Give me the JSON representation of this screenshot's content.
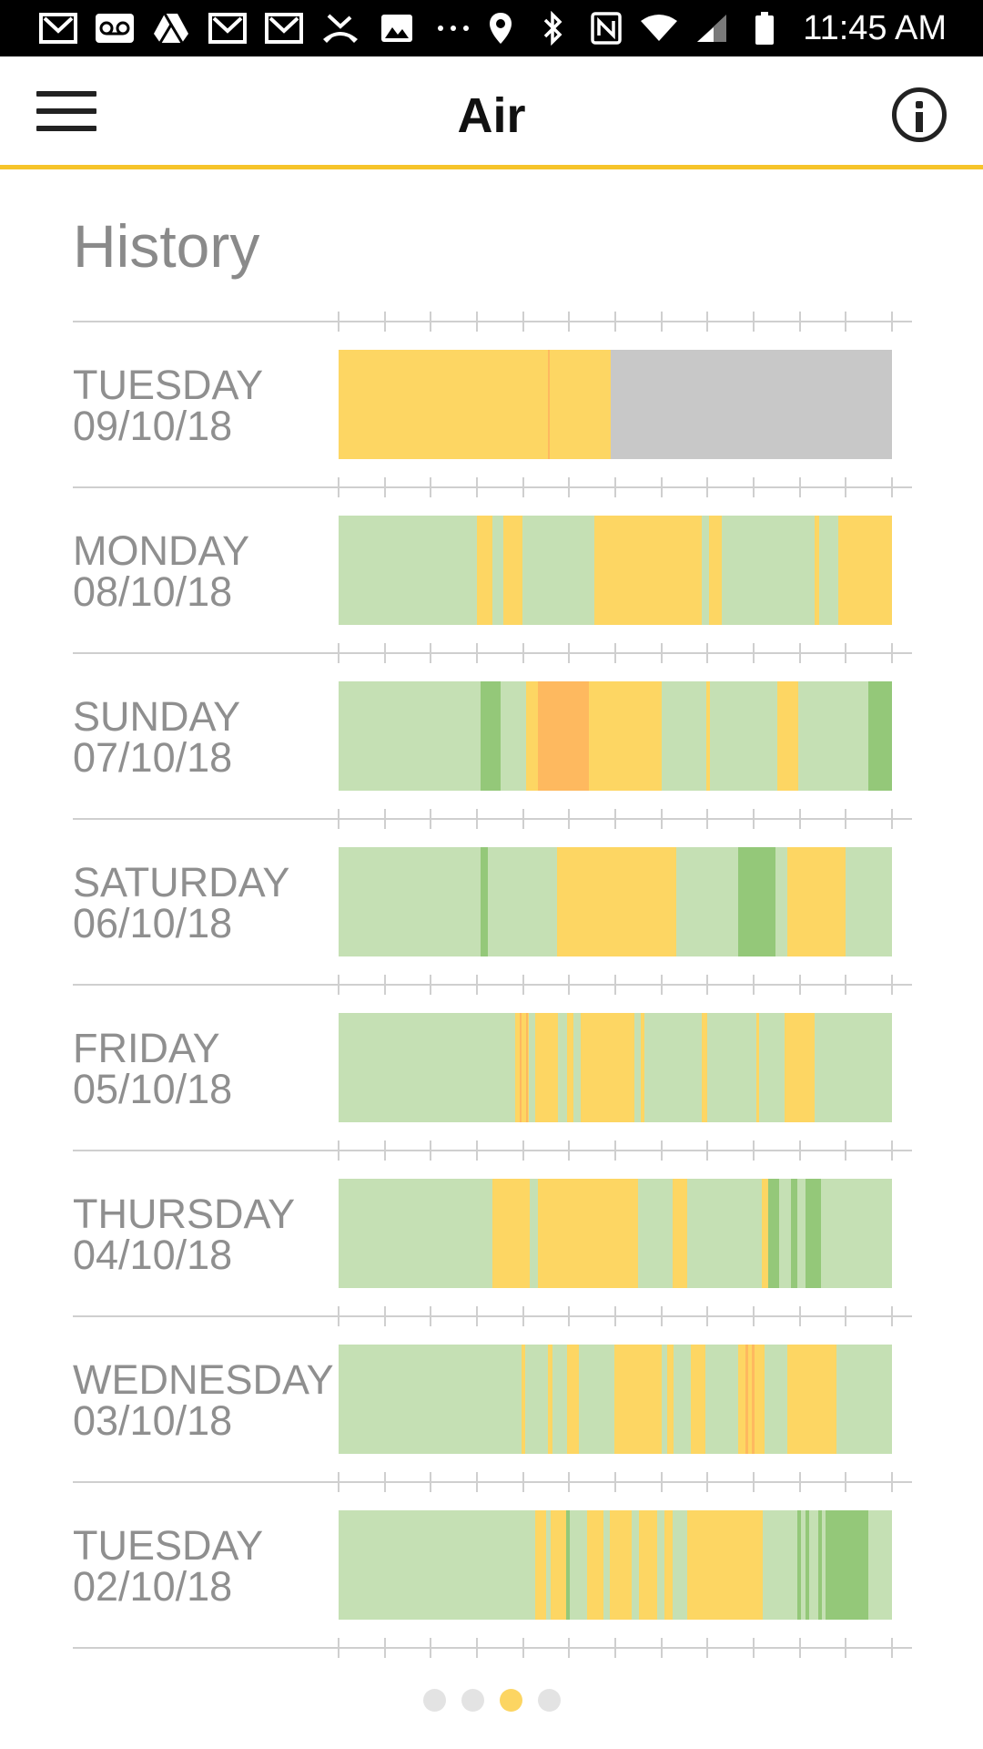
{
  "status_bar": {
    "time": "11:45 AM",
    "left_icons": [
      "gmail-icon",
      "voicemail-icon",
      "drive-icon",
      "gmail-icon",
      "gmail-icon",
      "missed-call-icon",
      "image-icon",
      "more-icon"
    ],
    "right_icons": [
      "location-icon",
      "bluetooth-icon",
      "nfc-icon",
      "wifi-icon",
      "signal-icon",
      "battery-icon"
    ]
  },
  "app_bar": {
    "title": "Air"
  },
  "history": {
    "title": "History",
    "scale_colors": {
      "good": "#c5e0b4",
      "very_good": "#94c879",
      "moderate": "#fdd663",
      "poor": "#feb95f",
      "no_data": "#c8c8c8"
    },
    "days": [
      {
        "day": "TUESDAY",
        "date": "09/10/18",
        "segments": [
          {
            "s": 0.0,
            "e": 0.378,
            "c": "moderate"
          },
          {
            "s": 0.378,
            "e": 0.382,
            "c": "poor"
          },
          {
            "s": 0.382,
            "e": 0.492,
            "c": "moderate"
          },
          {
            "s": 0.492,
            "e": 1.0,
            "c": "no_data"
          }
        ]
      },
      {
        "day": "MONDAY",
        "date": "08/10/18",
        "segments": [
          {
            "s": 0.25,
            "e": 0.278,
            "c": "moderate"
          },
          {
            "s": 0.298,
            "e": 0.332,
            "c": "moderate"
          },
          {
            "s": 0.462,
            "e": 0.656,
            "c": "moderate"
          },
          {
            "s": 0.67,
            "e": 0.693,
            "c": "moderate"
          },
          {
            "s": 0.861,
            "e": 0.868,
            "c": "moderate"
          },
          {
            "s": 0.903,
            "e": 1.0,
            "c": "moderate"
          }
        ]
      },
      {
        "day": "SUNDAY",
        "date": "07/10/18",
        "segments": [
          {
            "s": 0.256,
            "e": 0.292,
            "c": "very_good"
          },
          {
            "s": 0.339,
            "e": 0.36,
            "c": "moderate"
          },
          {
            "s": 0.36,
            "e": 0.452,
            "c": "poor"
          },
          {
            "s": 0.452,
            "e": 0.584,
            "c": "moderate"
          },
          {
            "s": 0.665,
            "e": 0.671,
            "c": "moderate"
          },
          {
            "s": 0.792,
            "e": 0.831,
            "c": "moderate"
          },
          {
            "s": 0.958,
            "e": 1.0,
            "c": "very_good"
          }
        ]
      },
      {
        "day": "SATURDAY",
        "date": "06/10/18",
        "segments": [
          {
            "s": 0.256,
            "e": 0.27,
            "c": "very_good"
          },
          {
            "s": 0.395,
            "e": 0.61,
            "c": "moderate"
          },
          {
            "s": 0.722,
            "e": 0.79,
            "c": "very_good"
          },
          {
            "s": 0.811,
            "e": 0.916,
            "c": "moderate"
          }
        ]
      },
      {
        "day": "FRIDAY",
        "date": "05/10/18",
        "segments": [
          {
            "s": 0.319,
            "e": 0.344,
            "c": "moderate"
          },
          {
            "s": 0.327,
            "e": 0.331,
            "c": "poor"
          },
          {
            "s": 0.338,
            "e": 0.342,
            "c": "poor"
          },
          {
            "s": 0.356,
            "e": 0.396,
            "c": "moderate"
          },
          {
            "s": 0.413,
            "e": 0.425,
            "c": "moderate"
          },
          {
            "s": 0.437,
            "e": 0.535,
            "c": "moderate"
          },
          {
            "s": 0.546,
            "e": 0.552,
            "c": "moderate"
          },
          {
            "s": 0.656,
            "e": 0.666,
            "c": "moderate"
          },
          {
            "s": 0.755,
            "e": 0.76,
            "c": "moderate"
          },
          {
            "s": 0.806,
            "e": 0.86,
            "c": "moderate"
          }
        ]
      },
      {
        "day": "THURSDAY",
        "date": "04/10/18",
        "segments": [
          {
            "s": 0.278,
            "e": 0.345,
            "c": "moderate"
          },
          {
            "s": 0.36,
            "e": 0.541,
            "c": "moderate"
          },
          {
            "s": 0.603,
            "e": 0.63,
            "c": "moderate"
          },
          {
            "s": 0.765,
            "e": 0.777,
            "c": "moderate"
          },
          {
            "s": 0.777,
            "e": 0.796,
            "c": "very_good"
          },
          {
            "s": 0.818,
            "e": 0.829,
            "c": "very_good"
          },
          {
            "s": 0.843,
            "e": 0.872,
            "c": "very_good"
          }
        ]
      },
      {
        "day": "WEDNESDAY",
        "date": "03/10/18",
        "segments": [
          {
            "s": 0.331,
            "e": 0.337,
            "c": "moderate"
          },
          {
            "s": 0.378,
            "e": 0.386,
            "c": "moderate"
          },
          {
            "s": 0.413,
            "e": 0.435,
            "c": "moderate"
          },
          {
            "s": 0.498,
            "e": 0.584,
            "c": "moderate"
          },
          {
            "s": 0.594,
            "e": 0.605,
            "c": "moderate"
          },
          {
            "s": 0.637,
            "e": 0.663,
            "c": "moderate"
          },
          {
            "s": 0.722,
            "e": 0.77,
            "c": "moderate"
          },
          {
            "s": 0.735,
            "e": 0.74,
            "c": "poor"
          },
          {
            "s": 0.747,
            "e": 0.752,
            "c": "poor"
          },
          {
            "s": 0.811,
            "e": 0.9,
            "c": "moderate"
          }
        ]
      },
      {
        "day": "TUESDAY",
        "date": "02/10/18",
        "segments": [
          {
            "s": 0.355,
            "e": 0.375,
            "c": "moderate"
          },
          {
            "s": 0.383,
            "e": 0.411,
            "c": "moderate"
          },
          {
            "s": 0.411,
            "e": 0.417,
            "c": "very_good"
          },
          {
            "s": 0.449,
            "e": 0.478,
            "c": "moderate"
          },
          {
            "s": 0.49,
            "e": 0.53,
            "c": "moderate"
          },
          {
            "s": 0.543,
            "e": 0.576,
            "c": "moderate"
          },
          {
            "s": 0.589,
            "e": 0.603,
            "c": "moderate"
          },
          {
            "s": 0.63,
            "e": 0.766,
            "c": "moderate"
          },
          {
            "s": 0.829,
            "e": 0.836,
            "c": "very_good"
          },
          {
            "s": 0.843,
            "e": 0.85,
            "c": "very_good"
          },
          {
            "s": 0.866,
            "e": 0.873,
            "c": "very_good"
          },
          {
            "s": 0.88,
            "e": 0.958,
            "c": "very_good"
          }
        ]
      }
    ]
  },
  "pager": {
    "count": 4,
    "active": 2
  }
}
